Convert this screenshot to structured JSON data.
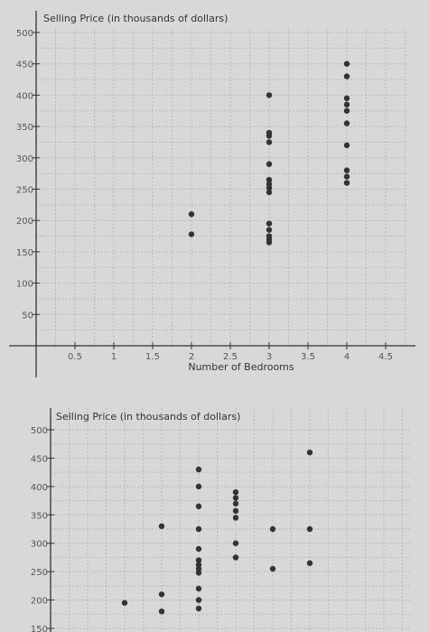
{
  "chart_data": [
    {
      "type": "scatter",
      "title": "Selling Price (in thousands of dollars)",
      "xlabel": "Number of Bedrooms",
      "ylabel": "",
      "xlim": [
        0,
        4.5
      ],
      "ylim": [
        0,
        500
      ],
      "x_ticks": [
        0.5,
        1,
        1.5,
        2,
        2.5,
        3,
        3.5,
        4,
        4.5
      ],
      "x_tick_labels": [
        "0.5",
        "1",
        "1.5",
        "2",
        "2.5",
        "3",
        "3.5",
        "4",
        "4.5"
      ],
      "y_ticks": [
        50,
        100,
        150,
        200,
        250,
        300,
        350,
        400,
        450,
        500
      ],
      "y_tick_labels": [
        "50",
        "100",
        "150",
        "200",
        "250",
        "300",
        "350",
        "400",
        "450",
        "500"
      ],
      "grid": true,
      "points": [
        {
          "x": 2,
          "y": 210
        },
        {
          "x": 2,
          "y": 178
        },
        {
          "x": 3,
          "y": 400
        },
        {
          "x": 3,
          "y": 340
        },
        {
          "x": 3,
          "y": 335
        },
        {
          "x": 3,
          "y": 325
        },
        {
          "x": 3,
          "y": 290
        },
        {
          "x": 3,
          "y": 265
        },
        {
          "x": 3,
          "y": 258
        },
        {
          "x": 3,
          "y": 252
        },
        {
          "x": 3,
          "y": 245
        },
        {
          "x": 3,
          "y": 195
        },
        {
          "x": 3,
          "y": 185
        },
        {
          "x": 3,
          "y": 175
        },
        {
          "x": 3,
          "y": 170
        },
        {
          "x": 3,
          "y": 165
        },
        {
          "x": 4,
          "y": 450
        },
        {
          "x": 4,
          "y": 430
        },
        {
          "x": 4,
          "y": 395
        },
        {
          "x": 4,
          "y": 385
        },
        {
          "x": 4,
          "y": 375
        },
        {
          "x": 4,
          "y": 355
        },
        {
          "x": 4,
          "y": 320
        },
        {
          "x": 4,
          "y": 280
        },
        {
          "x": 4,
          "y": 270
        },
        {
          "x": 4,
          "y": 260
        }
      ]
    },
    {
      "type": "scatter",
      "title": "Selling Price (in thousands of dollars)",
      "xlabel": "",
      "ylabel": "",
      "xlim": [
        0,
        4.5
      ],
      "ylim": [
        150,
        500
      ],
      "x_ticks": [],
      "x_tick_labels": [],
      "y_ticks": [
        150,
        200,
        250,
        300,
        350,
        400,
        450,
        500
      ],
      "y_tick_labels": [
        "150",
        "200",
        "250",
        "300",
        "350",
        "400",
        "450",
        "500"
      ],
      "grid": true,
      "points": [
        {
          "x": 1,
          "y": 195
        },
        {
          "x": 1.5,
          "y": 330
        },
        {
          "x": 1.5,
          "y": 210
        },
        {
          "x": 1.5,
          "y": 180
        },
        {
          "x": 2,
          "y": 430
        },
        {
          "x": 2,
          "y": 400
        },
        {
          "x": 2,
          "y": 365
        },
        {
          "x": 2,
          "y": 325
        },
        {
          "x": 2,
          "y": 290
        },
        {
          "x": 2,
          "y": 270
        },
        {
          "x": 2,
          "y": 262
        },
        {
          "x": 2,
          "y": 255
        },
        {
          "x": 2,
          "y": 248
        },
        {
          "x": 2,
          "y": 220
        },
        {
          "x": 2,
          "y": 200
        },
        {
          "x": 2,
          "y": 185
        },
        {
          "x": 2.5,
          "y": 390
        },
        {
          "x": 2.5,
          "y": 380
        },
        {
          "x": 2.5,
          "y": 370
        },
        {
          "x": 2.5,
          "y": 357
        },
        {
          "x": 2.5,
          "y": 345
        },
        {
          "x": 2.5,
          "y": 300
        },
        {
          "x": 2.5,
          "y": 275
        },
        {
          "x": 3,
          "y": 325
        },
        {
          "x": 3,
          "y": 255
        },
        {
          "x": 3.5,
          "y": 460
        },
        {
          "x": 3.5,
          "y": 325
        },
        {
          "x": 3.5,
          "y": 265
        }
      ]
    }
  ]
}
